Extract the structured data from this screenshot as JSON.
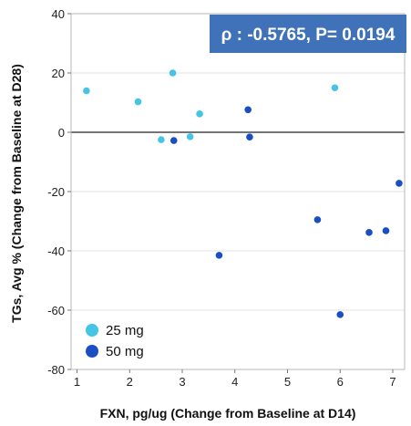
{
  "chart_data": {
    "type": "scatter",
    "title": "",
    "xlabel": "FXN, pg/ug (Change from Baseline at D14)",
    "ylabel": "TGs, Avg % (Change from Baseline at D28)",
    "xlim": [
      1,
      7.25
    ],
    "ylim": [
      -80,
      40
    ],
    "x_ticks": [
      "1",
      "2",
      "3",
      "4",
      "5",
      "6",
      "7"
    ],
    "y_ticks": [
      "40",
      "20",
      "0",
      "-20",
      "-40",
      "-60",
      "-80"
    ],
    "grid": "horizontal",
    "reference_line_y": 0,
    "legend_position": "bottom-left",
    "annotation": "ρ : -0.5765, P= 0.0194",
    "annotation_color": "#3f72b8",
    "series": [
      {
        "name": "25 mg",
        "color": "#45c4e6",
        "points": [
          {
            "x": 1.18,
            "y": 14
          },
          {
            "x": 2.16,
            "y": 10.3
          },
          {
            "x": 2.6,
            "y": -2.5
          },
          {
            "x": 2.82,
            "y": 20
          },
          {
            "x": 3.15,
            "y": -1.5
          },
          {
            "x": 3.33,
            "y": 6.2
          },
          {
            "x": 5.9,
            "y": 15
          }
        ]
      },
      {
        "name": "50 mg",
        "color": "#1a4fc4",
        "points": [
          {
            "x": 2.84,
            "y": -2.8
          },
          {
            "x": 3.7,
            "y": -41.5
          },
          {
            "x": 4.25,
            "y": 7.6
          },
          {
            "x": 4.28,
            "y": -1.6
          },
          {
            "x": 5.57,
            "y": -29.5
          },
          {
            "x": 6.0,
            "y": -61.5
          },
          {
            "x": 6.55,
            "y": -33.8
          },
          {
            "x": 6.87,
            "y": -33.2
          },
          {
            "x": 7.12,
            "y": -17.2
          }
        ]
      }
    ]
  }
}
